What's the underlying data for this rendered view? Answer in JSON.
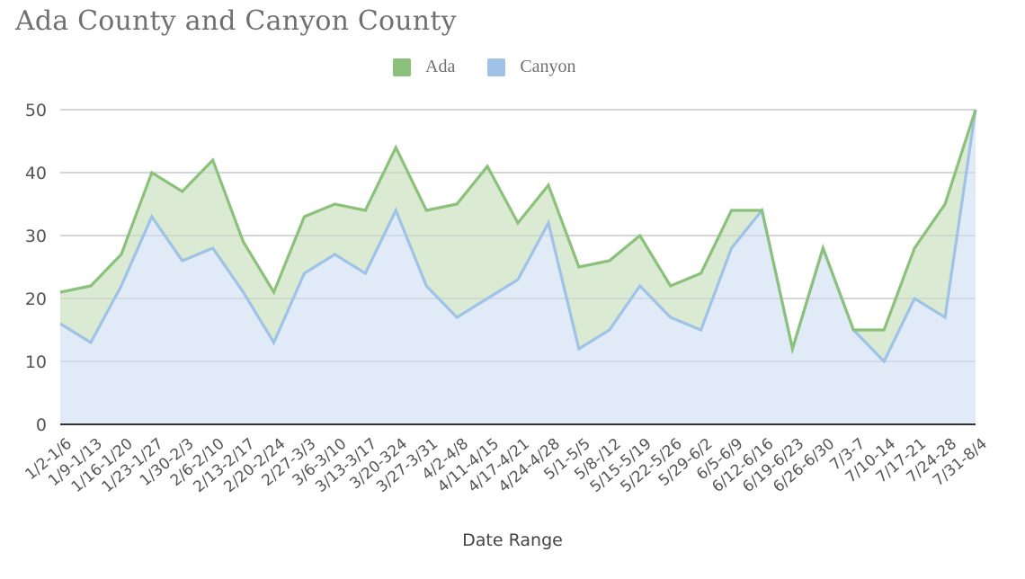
{
  "chart_data": {
    "type": "area",
    "title": "Ada County and Canyon County",
    "xlabel": "Date Range",
    "ylabel": "",
    "ylim": [
      0,
      50
    ],
    "yticks": [
      0,
      10,
      20,
      30,
      40,
      50
    ],
    "grid": true,
    "legend_position": "top",
    "categories": [
      "1/2-1/6",
      "1/9-1/13",
      "1/16-1/20",
      "1/23-1/27",
      "1/30-2/3",
      "2/6-2/10",
      "2/13-2/17",
      "2/20-2/24",
      "2/27-3/3",
      "3/6-3/10",
      "3/13-3/17",
      "3/20-324",
      "3/27-3/31",
      "4/2-4/8",
      "4/11-4/15",
      "4/17-4/21",
      "4/24-4/28",
      "5/1-5/5",
      "5/8-/12",
      "5/15-5/19",
      "5/22-5/26",
      "5/29-6/2",
      "6/5-6/9",
      "6/12-6/16",
      "6/19-6/23",
      "6/26-6/30",
      "7/3-7",
      "7/10-14",
      "7/17-21",
      "7/24-28",
      "7/31-8/4"
    ],
    "series": [
      {
        "name": "Ada",
        "color": "#8bc17a",
        "fill": "#dbead3",
        "values": [
          21,
          22,
          27,
          40,
          37,
          42,
          29,
          21,
          33,
          35,
          34,
          44,
          34,
          35,
          41,
          32,
          38,
          25,
          26,
          30,
          22,
          24,
          34,
          34,
          12,
          28,
          15,
          15,
          28,
          35,
          50
        ]
      },
      {
        "name": "Canyon",
        "color": "#9fc3e6",
        "fill": "#e1ebf7",
        "values": [
          16,
          13,
          22,
          33,
          26,
          28,
          21,
          13,
          24,
          27,
          24,
          34,
          22,
          17,
          20,
          23,
          32,
          12,
          15,
          22,
          17,
          15,
          28,
          34,
          12,
          28,
          15,
          10,
          20,
          17,
          50
        ]
      }
    ]
  },
  "header": {
    "title": "Ada County and Canyon County"
  },
  "legend": {
    "items": [
      {
        "label": "Ada",
        "color": "#8bc17a"
      },
      {
        "label": "Canyon",
        "color": "#9fc3e6"
      }
    ]
  },
  "axis": {
    "x_title": "Date Range"
  }
}
